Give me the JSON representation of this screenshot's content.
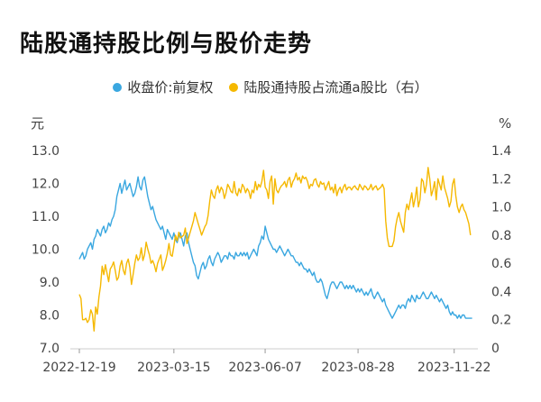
{
  "title": "陆股通持股比例与股价走势",
  "chart_data": {
    "type": "line",
    "title": "陆股通持股比例与股价走势",
    "x_ticks": [
      "2022-12-19",
      "2023-03-15",
      "2023-06-07",
      "2023-08-28",
      "2023-11-22"
    ],
    "x_tick_index": [
      0,
      58,
      114,
      171,
      230
    ],
    "n_points": 240,
    "y_left_label": "元",
    "y_right_label": "%",
    "y_left_ticks": [
      "13.0",
      "12.0",
      "11.0",
      "10.0",
      "9.0",
      "8.0",
      "7.0"
    ],
    "y_right_ticks": [
      "1.4",
      "1.2",
      "1.0",
      "0.8",
      "0.6",
      "0.4",
      "0.2",
      "0"
    ],
    "ylim_left": [
      7.0,
      13.0
    ],
    "ylim_right": [
      0,
      1.4
    ],
    "legend_position": "top-center",
    "series": [
      {
        "name": "收盘价:前复权",
        "axis": "left",
        "color": "#3aa7e0",
        "values": [
          9.7,
          9.8,
          9.9,
          9.7,
          9.8,
          10.0,
          10.1,
          10.2,
          10.0,
          10.3,
          10.4,
          10.6,
          10.5,
          10.4,
          10.6,
          10.7,
          10.5,
          10.6,
          10.8,
          10.7,
          10.9,
          11.0,
          11.2,
          11.6,
          11.8,
          12.0,
          11.7,
          11.9,
          12.1,
          11.8,
          11.9,
          12.0,
          11.8,
          11.6,
          11.7,
          11.9,
          12.2,
          11.9,
          11.8,
          12.1,
          12.2,
          11.9,
          11.6,
          11.4,
          11.2,
          11.3,
          11.1,
          10.9,
          10.8,
          10.7,
          10.6,
          10.7,
          10.5,
          10.3,
          10.6,
          10.5,
          10.4,
          10.3,
          10.5,
          10.3,
          10.2,
          10.4,
          10.5,
          10.3,
          10.1,
          10.4,
          10.5,
          10.2,
          10.0,
          9.8,
          9.6,
          9.5,
          9.2,
          9.1,
          9.3,
          9.5,
          9.6,
          9.4,
          9.5,
          9.7,
          9.8,
          9.6,
          9.5,
          9.7,
          9.8,
          9.9,
          9.8,
          9.6,
          9.7,
          9.8,
          9.8,
          9.7,
          9.9,
          9.8,
          9.8,
          9.7,
          9.9,
          9.8,
          9.8,
          9.9,
          9.8,
          9.9,
          9.8,
          9.9,
          9.7,
          9.8,
          9.9,
          10.0,
          9.9,
          9.8,
          10.1,
          10.2,
          10.4,
          10.3,
          10.7,
          10.5,
          10.3,
          10.2,
          10.1,
          10.0,
          10.0,
          9.9,
          10.0,
          10.1,
          10.0,
          9.9,
          9.8,
          9.9,
          10.0,
          9.9,
          9.8,
          9.8,
          9.7,
          9.6,
          9.6,
          9.5,
          9.6,
          9.5,
          9.4,
          9.4,
          9.3,
          9.4,
          9.3,
          9.2,
          9.3,
          9.1,
          9.0,
          9.0,
          9.1,
          9.0,
          8.8,
          8.6,
          8.5,
          8.7,
          8.9,
          9.0,
          9.0,
          8.9,
          8.8,
          8.9,
          9.0,
          9.0,
          8.9,
          8.8,
          8.9,
          8.8,
          8.9,
          8.8,
          8.9,
          8.8,
          8.7,
          8.8,
          8.7,
          8.8,
          8.7,
          8.6,
          8.7,
          8.6,
          8.7,
          8.8,
          8.6,
          8.5,
          8.6,
          8.7,
          8.6,
          8.5,
          8.4,
          8.5,
          8.3,
          8.2,
          8.1,
          8.0,
          7.9,
          8.0,
          8.1,
          8.2,
          8.3,
          8.2,
          8.3,
          8.3,
          8.2,
          8.4,
          8.5,
          8.4,
          8.6,
          8.5,
          8.4,
          8.6,
          8.5,
          8.5,
          8.6,
          8.7,
          8.6,
          8.5,
          8.5,
          8.6,
          8.7,
          8.6,
          8.5,
          8.6,
          8.5,
          8.4,
          8.5,
          8.4,
          8.3,
          8.2,
          8.3,
          8.1,
          8.0,
          8.1,
          8.0,
          8.0,
          7.9,
          8.0,
          7.9,
          8.0,
          8.0,
          7.9,
          7.9,
          7.9,
          7.9,
          7.9
        ]
      },
      {
        "name": "陆股通持股占流通a股比（右）",
        "axis": "right",
        "color": "#f5b800",
        "values": [
          0.38,
          0.35,
          0.2,
          0.2,
          0.21,
          0.18,
          0.2,
          0.27,
          0.24,
          0.12,
          0.29,
          0.24,
          0.36,
          0.44,
          0.58,
          0.52,
          0.59,
          0.53,
          0.47,
          0.56,
          0.58,
          0.61,
          0.55,
          0.48,
          0.5,
          0.58,
          0.62,
          0.55,
          0.52,
          0.6,
          0.63,
          0.57,
          0.45,
          0.52,
          0.6,
          0.66,
          0.62,
          0.64,
          0.71,
          0.62,
          0.66,
          0.75,
          0.7,
          0.66,
          0.6,
          0.62,
          0.59,
          0.54,
          0.6,
          0.63,
          0.66,
          0.55,
          0.58,
          0.62,
          0.67,
          0.74,
          0.66,
          0.65,
          0.72,
          0.8,
          0.76,
          0.82,
          0.78,
          0.79,
          0.8,
          0.85,
          0.74,
          0.78,
          0.82,
          0.86,
          0.9,
          0.96,
          0.92,
          0.88,
          0.84,
          0.8,
          0.83,
          0.86,
          0.88,
          0.94,
          1.04,
          1.12,
          1.08,
          1.06,
          1.12,
          1.15,
          1.1,
          1.14,
          1.12,
          1.06,
          1.1,
          1.16,
          1.14,
          1.11,
          1.1,
          1.18,
          1.1,
          1.08,
          1.13,
          1.1,
          1.16,
          1.14,
          1.1,
          1.13,
          1.11,
          1.06,
          1.12,
          1.1,
          1.18,
          1.12,
          1.16,
          1.14,
          1.18,
          1.26,
          1.14,
          1.12,
          1.06,
          1.18,
          1.22,
          1.02,
          1.2,
          1.12,
          1.1,
          1.13,
          1.15,
          1.16,
          1.18,
          1.14,
          1.19,
          1.21,
          1.14,
          1.18,
          1.2,
          1.24,
          1.19,
          1.21,
          1.17,
          1.22,
          1.2,
          1.21,
          1.18,
          1.13,
          1.16,
          1.15,
          1.19,
          1.2,
          1.16,
          1.14,
          1.18,
          1.16,
          1.17,
          1.12,
          1.15,
          1.18,
          1.12,
          1.14,
          1.1,
          1.16,
          1.08,
          1.12,
          1.14,
          1.1,
          1.14,
          1.16,
          1.12,
          1.14,
          1.14,
          1.12,
          1.14,
          1.15,
          1.13,
          1.12,
          1.16,
          1.14,
          1.12,
          1.15,
          1.14,
          1.12,
          1.13,
          1.16,
          1.12,
          1.14,
          1.15,
          1.12,
          1.13,
          1.14,
          1.16,
          1.13,
          0.9,
          0.78,
          0.72,
          0.72,
          0.72,
          0.76,
          0.86,
          0.92,
          0.96,
          0.9,
          0.86,
          0.82,
          0.96,
          1.02,
          0.98,
          1.04,
          1.1,
          1.0,
          1.06,
          1.14,
          1.0,
          1.05,
          1.2,
          1.18,
          1.1,
          1.16,
          1.28,
          1.2,
          1.08,
          1.12,
          1.18,
          1.05,
          1.2,
          1.16,
          1.12,
          1.22,
          1.14,
          1.1,
          1.06,
          1.0,
          1.04,
          1.16,
          1.2,
          1.08,
          1.0,
          0.96,
          1.0,
          1.02,
          0.98,
          0.96,
          0.92,
          0.88,
          0.8
        ]
      }
    ]
  }
}
